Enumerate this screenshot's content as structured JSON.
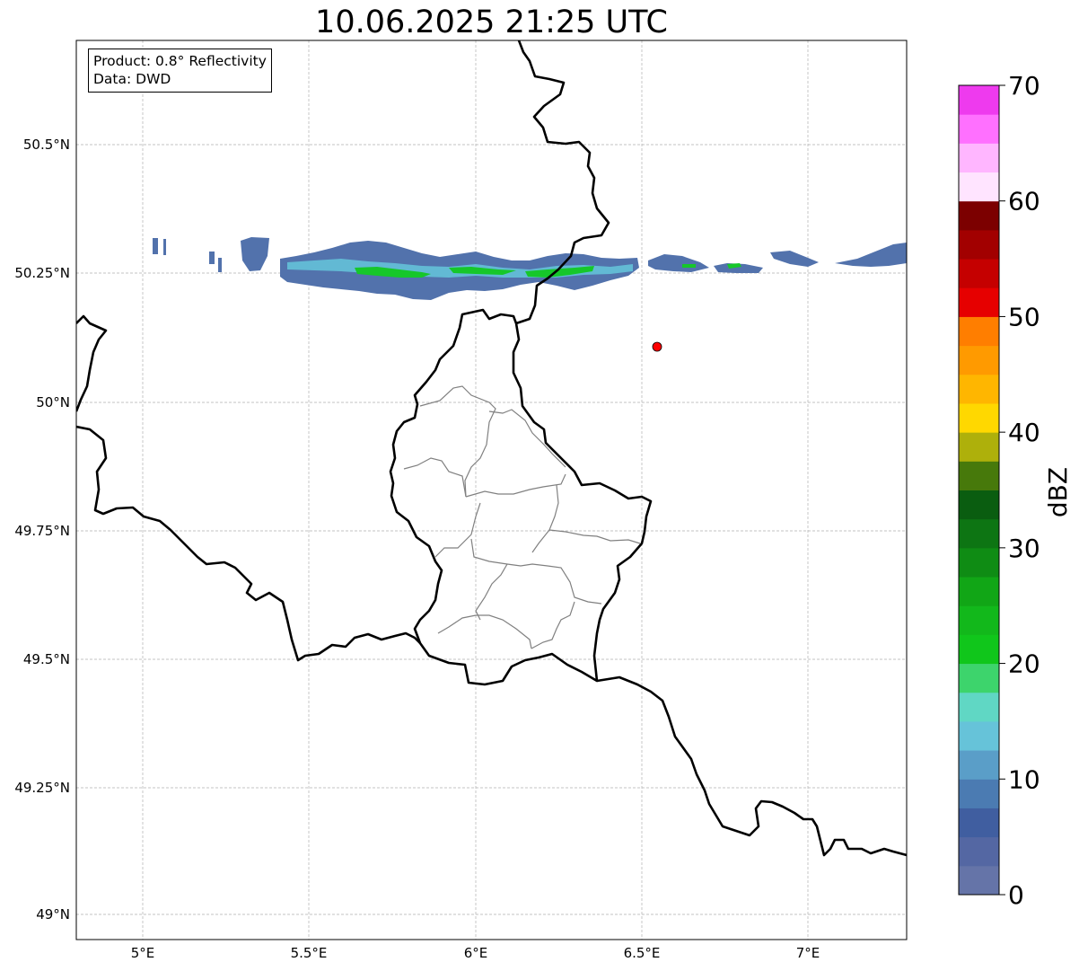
{
  "title": "10.06.2025 21:25 UTC",
  "info_box": {
    "product": "Product: 0.8° Reflectivity",
    "data": "Data: DWD"
  },
  "map": {
    "lon_range": [
      4.8,
      7.3
    ],
    "lat_range": [
      48.95,
      50.7
    ],
    "lat_ticks": [
      "50.5°N",
      "50.25°N",
      "50°N",
      "49.75°N",
      "49.5°N",
      "49.25°N",
      "49°N"
    ],
    "lon_ticks": [
      "5°E",
      "5.5°E",
      "6°E",
      "6.5°E",
      "7°E"
    ],
    "grid": true,
    "radar_site_marker": {
      "lon": 6.55,
      "lat": 50.11,
      "color": "#ff0000"
    }
  },
  "colorbar": {
    "label": "dBZ",
    "ticks": [
      "0",
      "10",
      "20",
      "30",
      "40",
      "50",
      "60",
      "70"
    ],
    "range": [
      0,
      70
    ],
    "bands": [
      {
        "from": 0,
        "to": 2.5,
        "color": "#6574a8"
      },
      {
        "from": 2.5,
        "to": 5,
        "color": "#5467a3"
      },
      {
        "from": 5,
        "to": 7.5,
        "color": "#405ea0"
      },
      {
        "from": 7.5,
        "to": 10,
        "color": "#4b7bb2"
      },
      {
        "from": 10,
        "to": 12.5,
        "color": "#5a9ec8"
      },
      {
        "from": 12.5,
        "to": 15,
        "color": "#66c3d9"
      },
      {
        "from": 15,
        "to": 17.5,
        "color": "#60d7c4"
      },
      {
        "from": 17.5,
        "to": 20,
        "color": "#3dd46c"
      },
      {
        "from": 20,
        "to": 22.5,
        "color": "#10c61b"
      },
      {
        "from": 22.5,
        "to": 25,
        "color": "#12b81b"
      },
      {
        "from": 25,
        "to": 27.5,
        "color": "#11a616"
      },
      {
        "from": 27.5,
        "to": 30,
        "color": "#0f8c14"
      },
      {
        "from": 30,
        "to": 32.5,
        "color": "#0d7513"
      },
      {
        "from": 32.5,
        "to": 35,
        "color": "#0a5d10"
      },
      {
        "from": 35,
        "to": 37.5,
        "color": "#47790b"
      },
      {
        "from": 37.5,
        "to": 40,
        "color": "#aeb00b"
      },
      {
        "from": 40,
        "to": 42.5,
        "color": "#ffd800"
      },
      {
        "from": 42.5,
        "to": 45,
        "color": "#ffb600"
      },
      {
        "from": 45,
        "to": 47.5,
        "color": "#ff9a00"
      },
      {
        "from": 47.5,
        "to": 50,
        "color": "#ff7e00"
      },
      {
        "from": 50,
        "to": 52.5,
        "color": "#e60000"
      },
      {
        "from": 52.5,
        "to": 55,
        "color": "#c50000"
      },
      {
        "from": 55,
        "to": 57.5,
        "color": "#a20000"
      },
      {
        "from": 57.5,
        "to": 60,
        "color": "#7c0000"
      },
      {
        "from": 60,
        "to": 62.5,
        "color": "#ffe4ff"
      },
      {
        "from": 62.5,
        "to": 65,
        "color": "#ffb6ff"
      },
      {
        "from": 65,
        "to": 67.5,
        "color": "#ff70ff"
      },
      {
        "from": 67.5,
        "to": 70,
        "color": "#ee3aee"
      }
    ]
  }
}
